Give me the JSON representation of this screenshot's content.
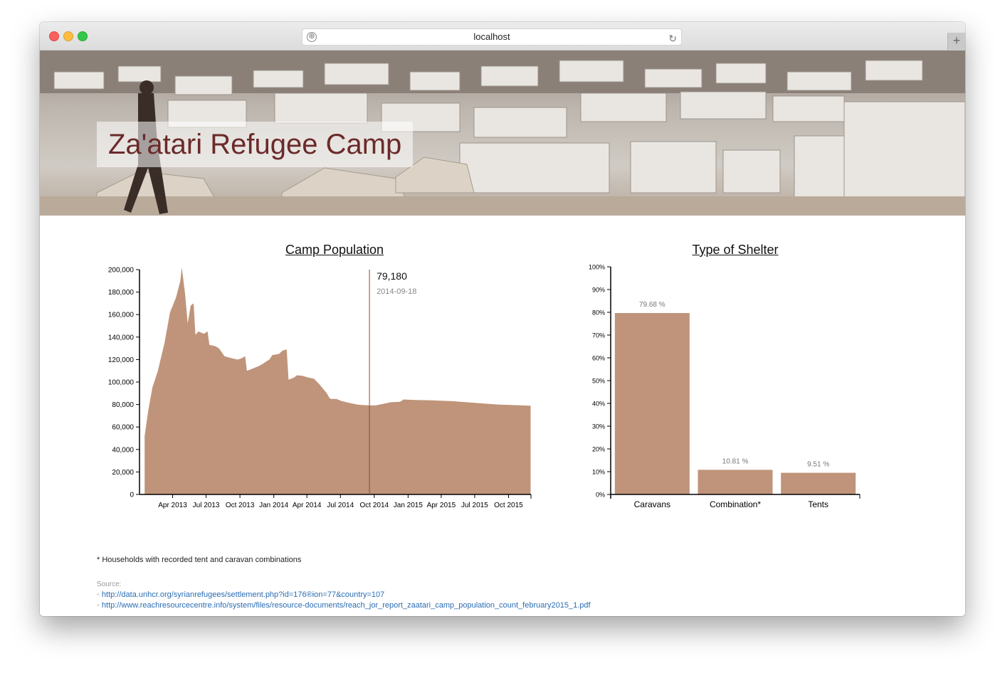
{
  "browser": {
    "url": "localhost",
    "add_icon": "⊕",
    "reload_icon": "↻",
    "newtab_icon": "+"
  },
  "header": {
    "title": "Za'atari Refugee Camp"
  },
  "colors": {
    "bar": "#bf947a",
    "title": "#6b2a2a",
    "link": "#2a6db3",
    "marker": "#8b4a2a"
  },
  "chart_data": [
    {
      "type": "area",
      "title": "Camp Population",
      "xlabel": "",
      "ylabel": "",
      "ylim": [
        0,
        200000
      ],
      "yticks": [
        0,
        20000,
        40000,
        60000,
        80000,
        100000,
        120000,
        140000,
        160000,
        180000,
        200000
      ],
      "ytick_labels": [
        "0",
        "20,000",
        "40,000",
        "60,000",
        "80,000",
        "100,000",
        "120,000",
        "140,000",
        "160,000",
        "180,000",
        "200,000"
      ],
      "xticks": [
        "2013-04-01",
        "2013-07-01",
        "2013-10-01",
        "2014-01-01",
        "2014-04-01",
        "2014-07-01",
        "2014-10-01",
        "2015-01-01",
        "2015-04-01",
        "2015-07-01",
        "2015-10-01"
      ],
      "xtick_labels": [
        "Apr 2013",
        "Jul 2013",
        "Oct 2013",
        "Jan 2014",
        "Apr 2014",
        "Jul 2014",
        "Oct 2014",
        "Jan 2015",
        "Apr 2015",
        "Jul 2015",
        "Oct 2015"
      ],
      "hover": {
        "date": "2014-09-18",
        "value": "79,180"
      },
      "series": [
        [
          "2013-01-15",
          52000
        ],
        [
          "2013-01-25",
          75000
        ],
        [
          "2013-02-05",
          95000
        ],
        [
          "2013-02-20",
          110000
        ],
        [
          "2013-03-10",
          135000
        ],
        [
          "2013-03-25",
          162000
        ],
        [
          "2013-04-10",
          175000
        ],
        [
          "2013-04-22",
          190000
        ],
        [
          "2013-04-26",
          202000
        ],
        [
          "2013-05-05",
          178000
        ],
        [
          "2013-05-12",
          152000
        ],
        [
          "2013-05-20",
          168000
        ],
        [
          "2013-05-28",
          170000
        ],
        [
          "2013-06-02",
          142000
        ],
        [
          "2013-06-10",
          145000
        ],
        [
          "2013-06-25",
          143000
        ],
        [
          "2013-07-05",
          145000
        ],
        [
          "2013-07-10",
          133000
        ],
        [
          "2013-07-25",
          132000
        ],
        [
          "2013-08-05",
          130000
        ],
        [
          "2013-08-20",
          123000
        ],
        [
          "2013-09-10",
          121000
        ],
        [
          "2013-09-25",
          120000
        ],
        [
          "2013-10-05",
          121000
        ],
        [
          "2013-10-15",
          123000
        ],
        [
          "2013-10-20",
          110000
        ],
        [
          "2013-11-05",
          112000
        ],
        [
          "2013-11-20",
          114000
        ],
        [
          "2013-12-01",
          116000
        ],
        [
          "2013-12-10",
          118000
        ],
        [
          "2013-12-20",
          120000
        ],
        [
          "2013-12-28",
          124000
        ],
        [
          "2014-01-15",
          125000
        ],
        [
          "2014-01-25",
          128000
        ],
        [
          "2014-02-05",
          129000
        ],
        [
          "2014-02-10",
          102000
        ],
        [
          "2014-02-25",
          104000
        ],
        [
          "2014-03-05",
          106000
        ],
        [
          "2014-03-20",
          105500
        ],
        [
          "2014-04-05",
          104000
        ],
        [
          "2014-04-20",
          103000
        ],
        [
          "2014-05-05",
          98000
        ],
        [
          "2014-05-25",
          90000
        ],
        [
          "2014-06-01",
          86000
        ],
        [
          "2014-06-05",
          85000
        ],
        [
          "2014-06-20",
          85000
        ],
        [
          "2014-07-05",
          83000
        ],
        [
          "2014-07-25",
          81500
        ],
        [
          "2014-08-15",
          80000
        ],
        [
          "2014-09-01",
          79500
        ],
        [
          "2014-09-18",
          79180
        ],
        [
          "2014-10-05",
          79300
        ],
        [
          "2014-10-25",
          80500
        ],
        [
          "2014-11-15",
          82000
        ],
        [
          "2014-12-10",
          82500
        ],
        [
          "2014-12-20",
          84500
        ],
        [
          "2015-01-20",
          84000
        ],
        [
          "2015-03-01",
          83800
        ],
        [
          "2015-05-01",
          83000
        ],
        [
          "2015-07-01",
          81500
        ],
        [
          "2015-09-01",
          80000
        ],
        [
          "2015-11-30",
          79000
        ]
      ]
    },
    {
      "type": "bar",
      "title": "Type of Shelter",
      "categories": [
        "Caravans",
        "Combination*",
        "Tents"
      ],
      "values": [
        79.68,
        10.81,
        9.51
      ],
      "value_labels": [
        "79.68 %",
        "10.81 %",
        "9.51 %"
      ],
      "ylim": [
        0,
        100
      ],
      "yticks": [
        0,
        10,
        20,
        30,
        40,
        50,
        60,
        70,
        80,
        90,
        100
      ],
      "ytick_labels": [
        "0%",
        "10%",
        "20%",
        "30%",
        "40%",
        "50%",
        "60%",
        "70%",
        "80%",
        "90%",
        "100%"
      ]
    }
  ],
  "footnote": "* Households with recorded tent and caravan combinations",
  "sources": {
    "label": "Source:",
    "links": [
      "http://data.unhcr.org/syrianrefugees/settlement.php?id=176&region=77&country=107",
      "http://www.reachresourcecentre.info/system/files/resource-documents/reach_jor_report_zaatari_camp_population_count_february2015_1.pdf"
    ],
    "link_shown": [
      "http://data.unhcr.org/syrianrefugees/settlement.php?id=176®ion=77&country=107",
      "http://www.reachresourcecentre.info/system/files/resource-documents/reach_jor_report_zaatari_camp_population_count_february2015_1.pdf"
    ],
    "bullet": "◦"
  }
}
